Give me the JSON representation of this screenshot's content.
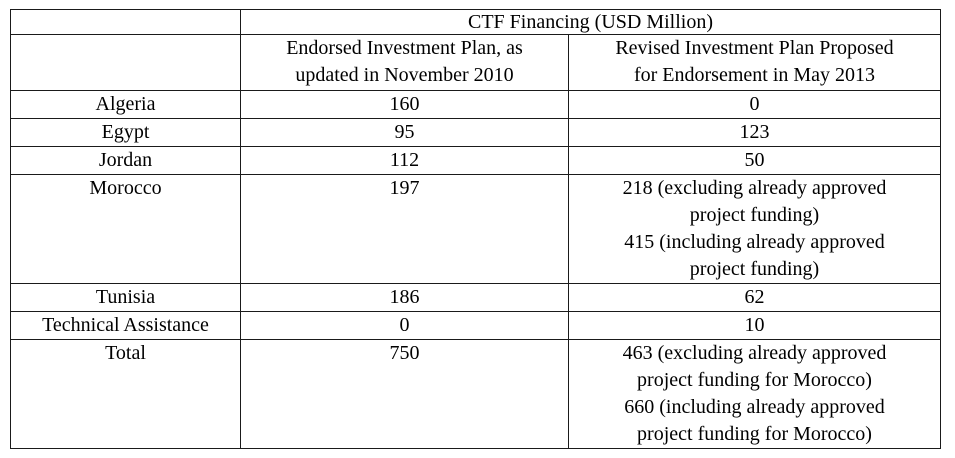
{
  "colors": {
    "border": "#1a1a1a",
    "text": "#000000",
    "background": "#ffffff"
  },
  "table": {
    "title": "CTF Financing (USD Million)",
    "column_headers": {
      "row_label": "",
      "endorsed": "Endorsed Investment Plan, as\nupdated in November 2010",
      "revised": "Revised Investment Plan Proposed\nfor Endorsement in May 2013"
    },
    "rows": [
      {
        "label": "Algeria",
        "endorsed": "160",
        "revised": "0"
      },
      {
        "label": "Egypt",
        "endorsed": "95",
        "revised": "123"
      },
      {
        "label": "Jordan",
        "endorsed": "112",
        "revised": "50"
      },
      {
        "label": "Morocco",
        "endorsed": "197",
        "revised": "218 (excluding already approved\nproject funding)\n415 (including already approved\nproject funding)"
      },
      {
        "label": "Tunisia",
        "endorsed": "186",
        "revised": "62"
      },
      {
        "label": "Technical Assistance",
        "endorsed": "0",
        "revised": "10"
      },
      {
        "label": "Total",
        "endorsed": "750",
        "revised": "463 (excluding already approved\nproject funding for Morocco)\n660 (including already approved\nproject funding for Morocco)"
      }
    ]
  }
}
